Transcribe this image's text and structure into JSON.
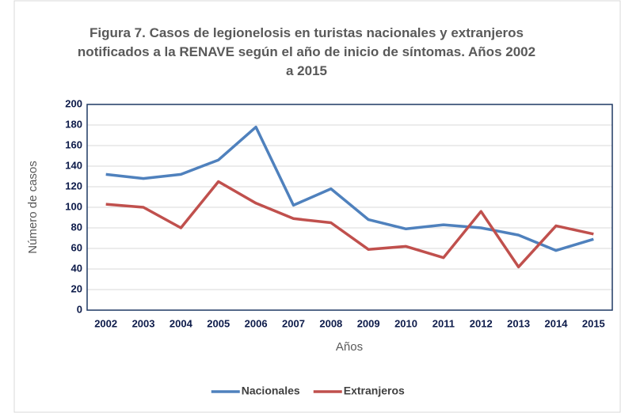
{
  "chart_data": {
    "type": "line",
    "title": "Figura 7. Casos de legionelosis en turistas nacionales y extranjeros notificados a la RENAVE según el año de inicio de síntomas. Años 2002 a 2015",
    "x_label": "Años",
    "y_label": "Número de casos",
    "categories": [
      "2002",
      "2003",
      "2004",
      "2005",
      "2006",
      "2007",
      "2008",
      "2009",
      "2010",
      "2011",
      "2012",
      "2013",
      "2014",
      "2015"
    ],
    "series": [
      {
        "name": "Nacionales",
        "color": "#4f81bd",
        "values": [
          132,
          128,
          132,
          146,
          178,
          102,
          118,
          88,
          79,
          83,
          80,
          73,
          58,
          69
        ]
      },
      {
        "name": "Extranjeros",
        "color": "#c0504d",
        "values": [
          103,
          100,
          80,
          125,
          104,
          89,
          85,
          59,
          62,
          51,
          96,
          42,
          82,
          74
        ]
      }
    ],
    "ylim": [
      0,
      200
    ],
    "yticks": [
      0,
      20,
      40,
      60,
      80,
      100,
      120,
      140,
      160,
      180,
      200
    ],
    "grid": true,
    "legend": "bottom"
  }
}
